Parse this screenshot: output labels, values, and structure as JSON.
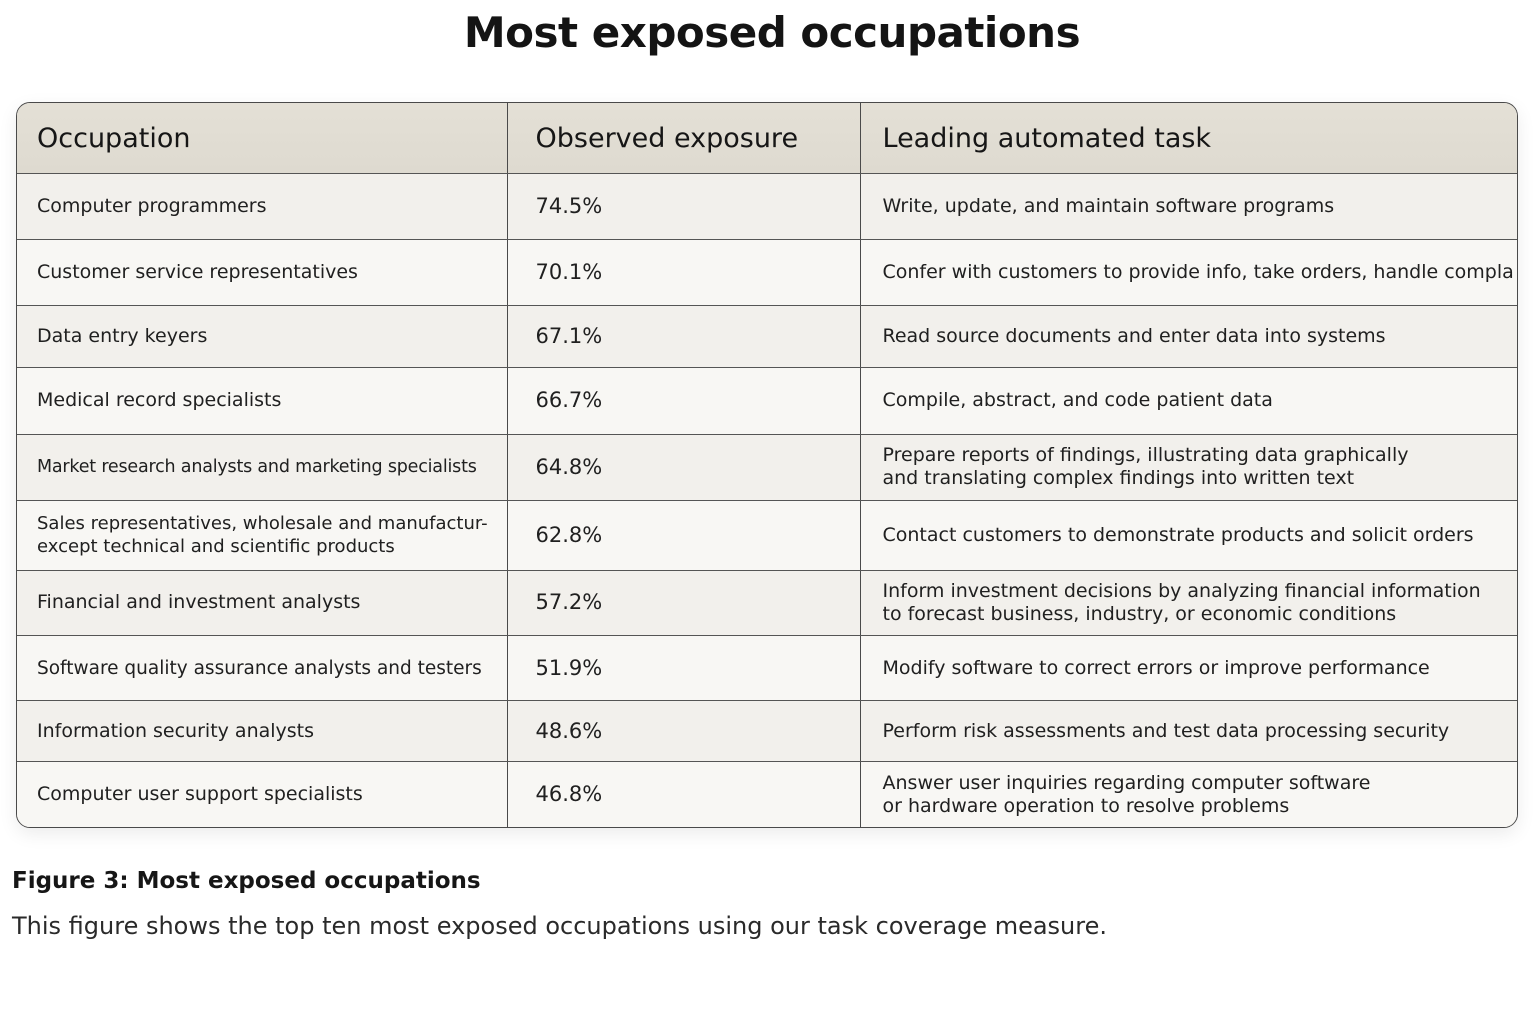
{
  "page_title": "Most exposed occupations",
  "table": {
    "headers": [
      "Occupation",
      "Observed exposure",
      "Leading automated task"
    ],
    "rows": [
      {
        "occupation": [
          "Computer programmers"
        ],
        "exposure": "74.5%",
        "task": [
          "Write, update, and maintain software programs"
        ]
      },
      {
        "occupation": [
          "Customer service representatives"
        ],
        "exposure": "70.1%",
        "task": [
          "Confer with customers to provide info, take orders, handle compla"
        ]
      },
      {
        "occupation": [
          "Data entry keyers"
        ],
        "exposure": "67.1%",
        "task": [
          "Read source documents and enter data into systems"
        ]
      },
      {
        "occupation": [
          "Medical record specialists"
        ],
        "exposure": "66.7%",
        "task": [
          "Compile, abstract, and code patient data"
        ]
      },
      {
        "occupation": [
          "Market research analysts and marketing specialists"
        ],
        "exposure": "64.8%",
        "task": [
          "Prepare reports of findings, illustrating data graphically",
          "and translating complex findings into written text"
        ]
      },
      {
        "occupation": [
          "Sales representatives, wholesale and manufactur-",
          "except technical and scientific products"
        ],
        "exposure": "62.8%",
        "task": [
          "Contact customers to demonstrate products and solicit orders"
        ]
      },
      {
        "occupation": [
          "Financial and investment analysts"
        ],
        "exposure": "57.2%",
        "task": [
          "Inform investment decisions by analyzing financial information",
          "to forecast business, industry, or economic conditions"
        ]
      },
      {
        "occupation": [
          "Software quality assurance analysts and testers"
        ],
        "exposure": "51.9%",
        "task": [
          "Modify software to correct errors or improve performance"
        ]
      },
      {
        "occupation": [
          "Information security analysts"
        ],
        "exposure": "48.6%",
        "task": [
          "Perform risk assessments and test data processing security"
        ]
      },
      {
        "occupation": [
          "Computer user support specialists"
        ],
        "exposure": "46.8%",
        "task": [
          "Answer user inquiries regarding computer software",
          "or hardware operation to resolve problems"
        ]
      }
    ]
  },
  "caption": {
    "title": "Figure 3: Most exposed occupations",
    "text": "This figure shows the top ten most exposed occupations using our task coverage measure."
  }
}
